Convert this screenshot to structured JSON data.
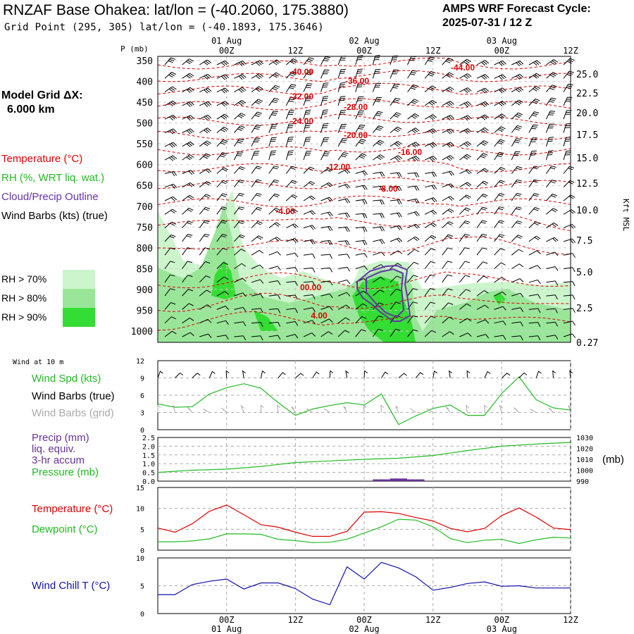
{
  "header": {
    "title": "RNZAF Base Ohakea:  lat/lon = (-40.2060, 175.3880)",
    "subtitle": "Grid Point (295, 305) lat/lon = (-40.1893, 175.3646)",
    "cycle_line1": "AMPS WRF Forecast Cycle:",
    "cycle_line2": "2025-07-31 / 12  Z"
  },
  "left_panel": {
    "model_grid_line1": "Model Grid ΔX:",
    "model_grid_line2": "6.000 km",
    "legend_temperature": "Temperature (°C)",
    "legend_rh": "RH (%, WRT liq. wat.)",
    "legend_cloud": "Cloud/Precip Outline",
    "legend_wind": "Wind Barbs (kts) (true)",
    "rh_keys": [
      {
        "label": "RH > 70%",
        "color": "#ccf5cc"
      },
      {
        "label": "RH > 80%",
        "color": "#99e699"
      },
      {
        "label": "RH > 90%",
        "color": "#33dd33"
      }
    ]
  },
  "colors": {
    "temperature": "#dd0000",
    "rh70": "#ccf5cc",
    "rh80": "#99e699",
    "rh90": "#33dd33",
    "cloud": "#6633aa",
    "wind_speed": "#22bb22",
    "grid_barbs": "#aaaaaa",
    "pressure": "#22bb22",
    "precip": "#663399",
    "dewpoint": "#22bb22",
    "wind_chill": "#1111aa",
    "grid": "#aaaaaa"
  },
  "time_axis": {
    "top_dates": [
      "01 Aug",
      "02 Aug",
      "03 Aug"
    ],
    "tick_labels": [
      "00Z",
      "12Z",
      "00Z",
      "12Z",
      "00Z",
      "12Z"
    ],
    "bottom_dates": [
      "01 Aug",
      "02 Aug",
      "03 Aug"
    ],
    "hours": [
      12,
      24,
      36,
      48,
      60,
      72
    ]
  },
  "chart_data": [
    {
      "type": "heatmap",
      "title": "Vertical cross-section (time-height)",
      "y_left_label": "P (mb)",
      "y_left_ticks": [
        350,
        400,
        450,
        500,
        550,
        600,
        650,
        700,
        750,
        800,
        850,
        900,
        950,
        1000
      ],
      "y_right_label": "Kft MSL",
      "y_right_ticks": [
        "25.0",
        "22.5",
        "20.0",
        "17.5",
        "15.0",
        "12.5",
        "10.0",
        "7.5",
        "5.0",
        "2.5",
        "0.27"
      ],
      "x_range_hours": [
        0,
        72
      ],
      "temperature_contour_labels": [
        "-40.00",
        "-36.00",
        "-44.00",
        "-32.00",
        "-28.00",
        "-24.00",
        "-20.00",
        "-16.00",
        "-12.00",
        "-8.00",
        "-4.00",
        "00.00",
        "4.00"
      ]
    },
    {
      "type": "line",
      "title": "Wind at 10 m",
      "series_labels": [
        "Wind Spd (kts)",
        "Wind Barbs (true)",
        "Wind Barbs (grid)"
      ],
      "ylim": [
        0,
        12
      ],
      "yticks": [
        0,
        3,
        6,
        9,
        12
      ],
      "x_hours": [
        -12,
        -9,
        -6,
        -3,
        0,
        3,
        6,
        9,
        12,
        15,
        18,
        21,
        24,
        27,
        30,
        33,
        36,
        39,
        42,
        45,
        48,
        51,
        54,
        57,
        60
      ],
      "series": [
        {
          "name": "Wind Spd (kts)",
          "values": [
            4.5,
            3.9,
            4.0,
            6.2,
            7.3,
            8.0,
            7.2,
            4.7,
            2.5,
            3.6,
            4.2,
            4.7,
            4.3,
            6.2,
            0.9,
            2.4,
            3.7,
            4.3,
            2.5,
            2.5,
            6.3,
            9.2,
            5.2,
            3.8,
            3.4
          ]
        }
      ]
    },
    {
      "type": "line",
      "title": "Precip / Pressure",
      "series_labels": [
        "Precip (mm)",
        "liq. equiv.",
        "3-hr accum",
        "Pressure (mb)"
      ],
      "ylim_left": [
        0,
        2.5
      ],
      "yticks_left": [
        "2.5",
        "2.0",
        "1.5",
        "1.0",
        "0.5",
        "0.0"
      ],
      "ylim_right": [
        990,
        1030
      ],
      "yticks_right": [
        "1030",
        "1020",
        "1010",
        "1000",
        "990"
      ],
      "y_right_unit": "(mb)",
      "x_hours": [
        -12,
        -6,
        0,
        6,
        12,
        18,
        24,
        30,
        36,
        42,
        48,
        54,
        60
      ],
      "series": [
        {
          "name": "Pressure (mb)",
          "values": [
            998.0,
            1000.0,
            1001.0,
            1003.5,
            1007.0,
            1008.5,
            1010.0,
            1011.0,
            1013.5,
            1018.0,
            1022.0,
            1024.0,
            1025.5
          ]
        },
        {
          "name": "Precip (mm)",
          "type": "bar",
          "x_hours": [
            27,
            30,
            33
          ],
          "values": [
            0.1,
            0.15,
            0.1
          ]
        }
      ]
    },
    {
      "type": "line",
      "title": "Temperature / Dewpoint",
      "series_labels": [
        "Temperature (°C)",
        "Dewpoint (°C)"
      ],
      "ylim": [
        0,
        15
      ],
      "yticks": [
        0,
        5,
        10,
        15
      ],
      "x_hours": [
        -12,
        -9,
        -6,
        -3,
        0,
        3,
        6,
        9,
        12,
        15,
        18,
        21,
        24,
        27,
        30,
        33,
        36,
        39,
        42,
        45,
        48,
        51,
        54,
        57,
        60
      ],
      "series": [
        {
          "name": "Temperature (°C)",
          "values": [
            5.3,
            4.3,
            6.3,
            9.3,
            10.8,
            8.5,
            6.1,
            5.5,
            4.3,
            3.3,
            3.3,
            4.5,
            9.1,
            9.2,
            8.8,
            7.8,
            7.0,
            5.2,
            4.4,
            5.2,
            8.3,
            10.1,
            7.9,
            5.3,
            4.9
          ]
        },
        {
          "name": "Dewpoint (°C)",
          "values": [
            2.0,
            2.0,
            2.2,
            2.7,
            3.9,
            3.9,
            3.8,
            2.6,
            2.3,
            1.8,
            1.9,
            2.6,
            4.1,
            5.6,
            7.4,
            7.2,
            5.6,
            2.8,
            1.8,
            2.4,
            2.6,
            1.6,
            2.5,
            3.1,
            2.9
          ]
        }
      ]
    },
    {
      "type": "line",
      "title": "Wind Chill",
      "series_labels": [
        "Wind Chill T (°C)"
      ],
      "ylim": [
        0,
        10
      ],
      "yticks": [
        0,
        5,
        10
      ],
      "x_hours": [
        -12,
        -9,
        -6,
        -3,
        0,
        3,
        6,
        9,
        12,
        15,
        18,
        21,
        24,
        27,
        30,
        33,
        36,
        39,
        42,
        45,
        48,
        51,
        54,
        57,
        60
      ],
      "series": [
        {
          "name": "Wind Chill T (°C)",
          "values": [
            3.4,
            3.4,
            5.2,
            5.8,
            6.2,
            4.4,
            5.5,
            5.5,
            4.5,
            2.6,
            1.6,
            8.4,
            6.2,
            9.2,
            8.2,
            6.6,
            4.2,
            4.7,
            5.4,
            5.7,
            4.9,
            5.0,
            4.6,
            4.6,
            4.6
          ]
        }
      ]
    }
  ],
  "panel_labels": {
    "wind_title": "Wind at 10 m",
    "wind_spd": "Wind Spd (kts)",
    "wind_barbs_true": "Wind Barbs (true)",
    "wind_barbs_grid": "Wind Barbs (grid)",
    "precip_1": "Precip (mm)",
    "precip_2": "liq. equiv.",
    "precip_3": "3-hr accum",
    "pressure": "Pressure (mb)",
    "pressure_unit": "(mb)",
    "temperature": "Temperature (°C)",
    "dewpoint": "Dewpoint (°C)",
    "wind_chill": "Wind Chill T (°C)",
    "kft_msl": "Kft MSL",
    "p_mb": "P (mb)"
  }
}
